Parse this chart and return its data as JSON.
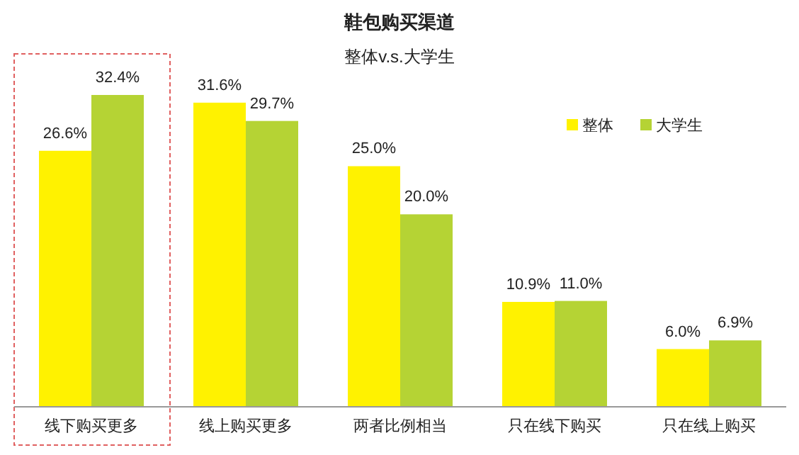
{
  "chart_data": {
    "type": "bar",
    "title": "鞋包购买渠道",
    "subtitle": "整体v.s.大学生",
    "categories": [
      "线下购买更多",
      "线上购买更多",
      "两者比例相当",
      "只在线下购买",
      "只在线上购买"
    ],
    "series": [
      {
        "name": "整体",
        "color": "#fff200",
        "values": [
          26.6,
          31.6,
          25.0,
          10.9,
          6.0
        ],
        "value_labels": [
          "26.6%",
          "31.6%",
          "25.0%",
          "10.9%",
          "6.0%"
        ]
      },
      {
        "name": "大学生",
        "color": "#b5d334",
        "values": [
          32.4,
          29.7,
          20.0,
          11.0,
          6.9
        ],
        "value_labels": [
          "32.4%",
          "29.7%",
          "20.0%",
          "11.0%",
          "6.9%"
        ]
      }
    ],
    "legend": "right"
  }
}
